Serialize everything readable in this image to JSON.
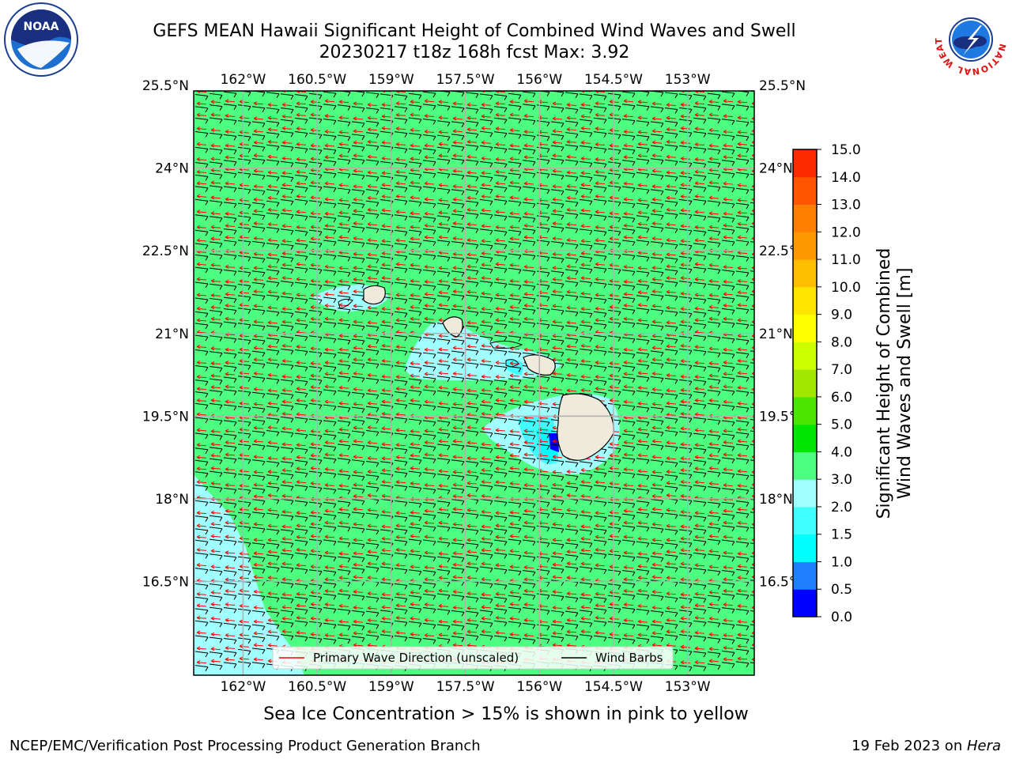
{
  "title": {
    "line1": "GEFS MEAN Hawaii Significant Height of Combined Wind Waves and Swell",
    "line2": "20230217 t18z 168h fcst   Max: 3.92"
  },
  "logos": {
    "left": {
      "name": "noaa-logo",
      "text": "NOAA"
    },
    "right": {
      "name": "nws-logo",
      "ring_text": "NATIONAL WEATHER SERVICE"
    }
  },
  "map": {
    "lon_range": [
      -163,
      -151.65
    ],
    "lat_range": [
      14.8,
      25.4
    ],
    "x_ticks": [
      {
        "value": -162,
        "label": "162°W"
      },
      {
        "value": -160.5,
        "label": "160.5°W"
      },
      {
        "value": -159,
        "label": "159°W"
      },
      {
        "value": -157.5,
        "label": "157.5°W"
      },
      {
        "value": -156,
        "label": "156°W"
      },
      {
        "value": -154.5,
        "label": "154.5°W"
      },
      {
        "value": -153,
        "label": "153°W"
      }
    ],
    "y_ticks": [
      {
        "value": 25.5,
        "label": "25.5°N"
      },
      {
        "value": 24,
        "label": "24°N"
      },
      {
        "value": 22.5,
        "label": "22.5°N"
      },
      {
        "value": 21,
        "label": "21°N"
      },
      {
        "value": 19.5,
        "label": "19.5°N"
      },
      {
        "value": 18,
        "label": "18°N"
      },
      {
        "value": 16.5,
        "label": "16.5°N"
      }
    ],
    "background_field_color": "#4dff80",
    "land_color": "#efeadb",
    "grid_color": "#b0b0b0"
  },
  "legend": {
    "items": [
      {
        "label": "Primary Wave Direction (unscaled)",
        "color": "#ff0000"
      },
      {
        "label": "Wind Barbs",
        "color": "#000000"
      }
    ]
  },
  "colorbar": {
    "label_line1": "Significant Height of Combined",
    "label_line2": "Wind Waves and Swell [m]",
    "levels": [
      "0.0",
      "0.5",
      "1.0",
      "1.5",
      "2.0",
      "3.0",
      "4.0",
      "5.0",
      "6.0",
      "7.0",
      "8.0",
      "9.0",
      "10.0",
      "11.0",
      "12.0",
      "13.0",
      "14.0",
      "15.0"
    ],
    "colors": [
      "#0000ff",
      "#1f7fff",
      "#00ffff",
      "#40ffff",
      "#a0ffff",
      "#4dff80",
      "#00e600",
      "#4ce600",
      "#a3e600",
      "#ccff00",
      "#ffff00",
      "#ffe600",
      "#ffbf00",
      "#ff9900",
      "#ff8000",
      "#ff5500",
      "#ff2b00"
    ]
  },
  "caption": "Sea Ice Concentration > 15% is shown in pink to yellow",
  "footer": {
    "left": "NCEP/EMC/Verification Post Processing Product Generation Branch",
    "right_date": "19 Feb 2023 on ",
    "right_host": "Hera"
  }
}
